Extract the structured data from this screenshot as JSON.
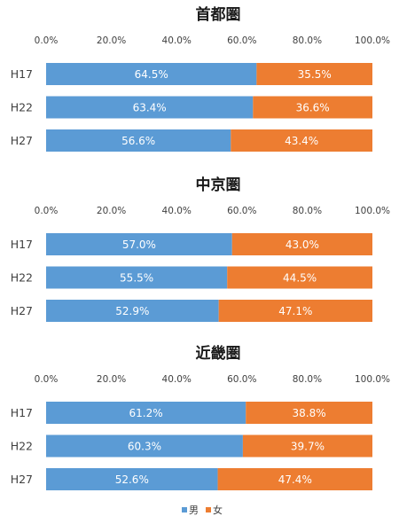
{
  "chart_data": [
    {
      "type": "bar",
      "orientation": "horizontal",
      "stacked": true,
      "title": "首都圏",
      "categories": [
        "H17",
        "H22",
        "H27"
      ],
      "xlim": [
        0,
        100
      ],
      "ticks": [
        "0.0%",
        "20.0%",
        "40.0%",
        "60.0%",
        "80.0%",
        "100.0%"
      ],
      "series": [
        {
          "name": "男",
          "values": [
            64.5,
            63.4,
            56.6
          ],
          "labels": [
            "64.5%",
            "63.4%",
            "56.6%"
          ]
        },
        {
          "name": "女",
          "values": [
            35.5,
            36.6,
            43.4
          ],
          "labels": [
            "35.5%",
            "36.6%",
            "43.4%"
          ]
        }
      ]
    },
    {
      "type": "bar",
      "orientation": "horizontal",
      "stacked": true,
      "title": "中京圏",
      "categories": [
        "H17",
        "H22",
        "H27"
      ],
      "xlim": [
        0,
        100
      ],
      "ticks": [
        "0.0%",
        "20.0%",
        "40.0%",
        "60.0%",
        "80.0%",
        "100.0%"
      ],
      "series": [
        {
          "name": "男",
          "values": [
            57.0,
            55.5,
            52.9
          ],
          "labels": [
            "57.0%",
            "55.5%",
            "52.9%"
          ]
        },
        {
          "name": "女",
          "values": [
            43.0,
            44.5,
            47.1
          ],
          "labels": [
            "43.0%",
            "44.5%",
            "47.1%"
          ]
        }
      ]
    },
    {
      "type": "bar",
      "orientation": "horizontal",
      "stacked": true,
      "title": "近畿圏",
      "categories": [
        "H17",
        "H22",
        "H27"
      ],
      "xlim": [
        0,
        100
      ],
      "ticks": [
        "0.0%",
        "20.0%",
        "40.0%",
        "60.0%",
        "80.0%",
        "100.0%"
      ],
      "series": [
        {
          "name": "男",
          "values": [
            61.2,
            60.3,
            52.6
          ],
          "labels": [
            "61.2%",
            "60.3%",
            "52.6%"
          ]
        },
        {
          "name": "女",
          "values": [
            38.8,
            39.7,
            47.4
          ],
          "labels": [
            "38.8%",
            "39.7%",
            "47.4%"
          ]
        }
      ]
    }
  ],
  "legend": {
    "items": [
      {
        "label": "男",
        "color": "#5b9bd5"
      },
      {
        "label": "女",
        "color": "#ed7d31"
      }
    ],
    "placement": "bottom"
  },
  "colors": {
    "male": "#5b9bd5",
    "female": "#ed7d31"
  }
}
